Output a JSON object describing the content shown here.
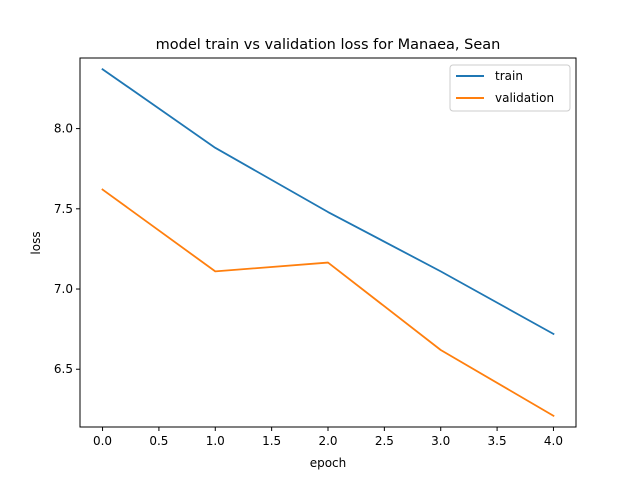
{
  "chart_data": {
    "type": "line",
    "title": "model train vs validation loss for Manaea, Sean",
    "xlabel": "epoch",
    "ylabel": "loss",
    "x": [
      0,
      1,
      2,
      3,
      4
    ],
    "series": [
      {
        "name": "train",
        "color": "#1f77b4",
        "values": [
          8.37,
          7.88,
          7.48,
          7.11,
          6.72
        ]
      },
      {
        "name": "validation",
        "color": "#ff7f0e",
        "values": [
          7.62,
          7.11,
          7.165,
          6.62,
          6.21
        ]
      }
    ],
    "xlim": [
      -0.2,
      4.2
    ],
    "ylim": [
      6.14,
      8.44
    ],
    "xticks": [
      0,
      0.5,
      1,
      1.5,
      2,
      2.5,
      3,
      3.5,
      4
    ],
    "xtick_labels": [
      "0.0",
      "0.5",
      "1.0",
      "1.5",
      "2.0",
      "2.5",
      "3.0",
      "3.5",
      "4.0"
    ],
    "yticks": [
      6.5,
      7.0,
      7.5,
      8.0
    ],
    "ytick_labels": [
      "6.5",
      "7.0",
      "7.5",
      "8.0"
    ],
    "grid": false,
    "legend_position": "top-right"
  }
}
